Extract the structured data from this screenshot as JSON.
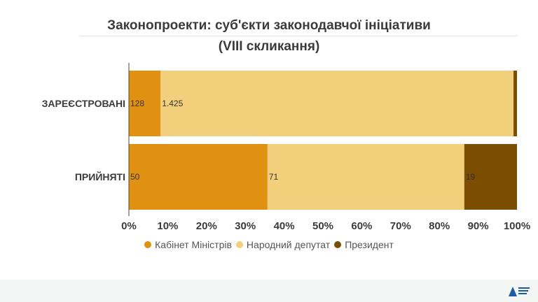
{
  "chart_data": {
    "type": "bar",
    "orientation": "horizontal",
    "stacked": "percent",
    "title": "Законопроекти: суб'єкти законодавчої ініціативи",
    "subtitle": "(VIII скликання)",
    "categories": [
      "ЗАРЕЄСТРОВАНІ",
      "ПРИЙНЯТІ"
    ],
    "series": [
      {
        "name": "Кабінет Міністрів",
        "values": [
          128,
          50
        ],
        "labels": [
          "128",
          "50"
        ],
        "color": "#e09112"
      },
      {
        "name": "Народний депутат",
        "values": [
          1425,
          71
        ],
        "labels": [
          "1.425",
          "71"
        ],
        "color": "#f1cf7b"
      },
      {
        "name": "Президент",
        "values": [
          14,
          19
        ],
        "labels": [
          "",
          "19"
        ],
        "color": "#7a4d00"
      }
    ],
    "xaxis": {
      "min": 0,
      "max": 1,
      "ticks": [
        "0%",
        "10%",
        "20%",
        "30%",
        "40%",
        "50%",
        "60%",
        "70%",
        "80%",
        "90%",
        "100%"
      ]
    },
    "grid": false,
    "legend_position": "bottom"
  }
}
